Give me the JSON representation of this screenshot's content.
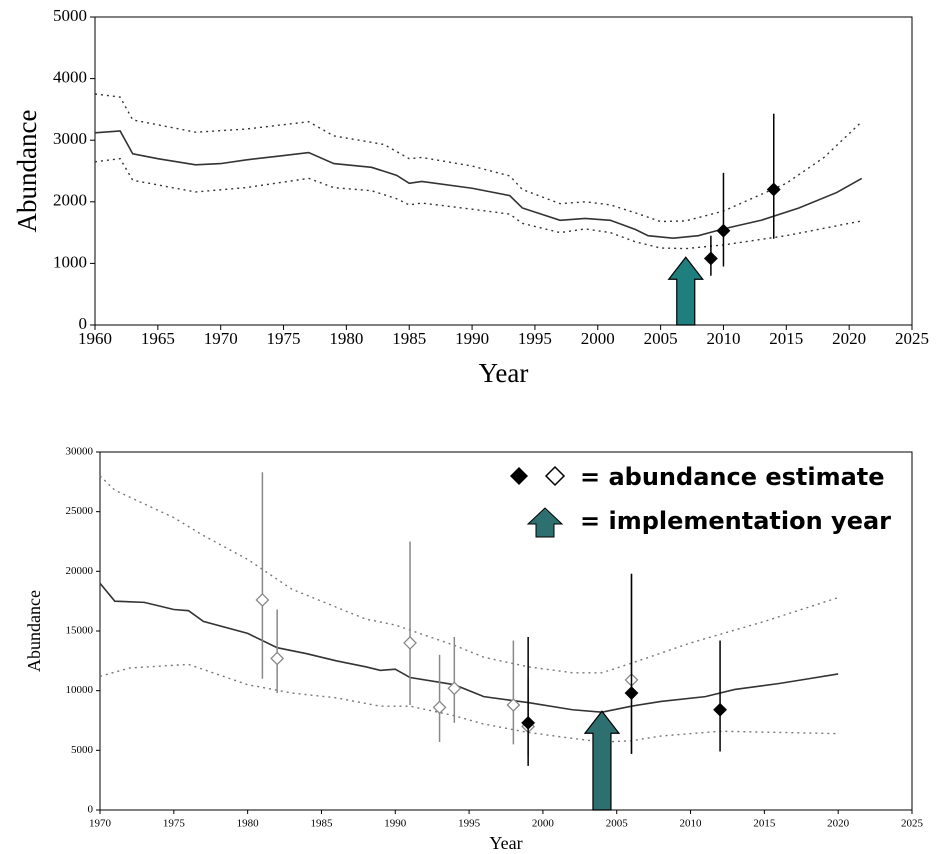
{
  "chart_data": [
    {
      "type": "line",
      "x_label": "Year",
      "y_label": "Abundance",
      "xlim": [
        1960,
        2025
      ],
      "xticks": [
        1960,
        1965,
        1970,
        1975,
        1980,
        1985,
        1990,
        1995,
        2000,
        2005,
        2010,
        2015,
        2020,
        2025
      ],
      "ylim": [
        0,
        5000
      ],
      "yticks": [
        0,
        1000,
        2000,
        3000,
        4000,
        5000
      ],
      "implementation_year": 2007,
      "arrow_color": "#1f7f7f",
      "series": [
        {
          "style": "solid",
          "color": "#333333",
          "x": [
            1960,
            1962,
            1963,
            1965,
            1968,
            1970,
            1972,
            1975,
            1977,
            1979,
            1982,
            1984,
            1985,
            1986,
            1990,
            1993,
            1994,
            1997,
            1999,
            2001,
            2003,
            2004,
            2006,
            2008,
            2010,
            2013,
            2016,
            2019,
            2021
          ],
          "values": [
            3120,
            3150,
            2780,
            2700,
            2600,
            2620,
            2680,
            2750,
            2800,
            2620,
            2560,
            2430,
            2300,
            2330,
            2220,
            2100,
            1900,
            1700,
            1730,
            1700,
            1550,
            1450,
            1410,
            1450,
            1560,
            1700,
            1900,
            2150,
            2380
          ]
        },
        {
          "style": "dotted",
          "color": "#333333",
          "x": [
            1960,
            1962,
            1963,
            1968,
            1972,
            1977,
            1979,
            1983,
            1985,
            1986,
            1990,
            1993,
            1994,
            1997,
            1999,
            2001,
            2003,
            2005,
            2007,
            2010,
            2015,
            2018,
            2021
          ],
          "values": [
            3750,
            3700,
            3330,
            3130,
            3180,
            3300,
            3070,
            2930,
            2700,
            2720,
            2580,
            2420,
            2200,
            1970,
            2000,
            1950,
            1820,
            1680,
            1690,
            1850,
            2300,
            2720,
            3300
          ]
        },
        {
          "style": "dotted",
          "color": "#333333",
          "x": [
            1960,
            1962,
            1963,
            1968,
            1972,
            1977,
            1979,
            1982,
            1984,
            1985,
            1986,
            1990,
            1993,
            1994,
            1997,
            1999,
            2001,
            2003,
            2005,
            2007,
            2010,
            2015,
            2021
          ],
          "values": [
            2650,
            2700,
            2350,
            2160,
            2230,
            2380,
            2230,
            2180,
            2050,
            1950,
            1980,
            1880,
            1800,
            1650,
            1500,
            1560,
            1500,
            1350,
            1250,
            1240,
            1300,
            1450,
            1690
          ]
        },
        {
          "style": "points",
          "marker": "filled",
          "color": "#000000",
          "x": [
            2009,
            2010,
            2014
          ],
          "values": [
            1080,
            1530,
            2200
          ],
          "lower": [
            800,
            950,
            1400
          ],
          "upper": [
            1450,
            2470,
            3430
          ]
        }
      ]
    },
    {
      "type": "line",
      "x_label": "Year",
      "y_label": "Abundance",
      "xlim": [
        1970,
        2025
      ],
      "xticks": [
        1970,
        1975,
        1980,
        1985,
        1990,
        1995,
        2000,
        2005,
        2010,
        2015,
        2020,
        2025
      ],
      "ylim": [
        0,
        30000
      ],
      "yticks": [
        0,
        5000,
        10000,
        15000,
        20000,
        25000,
        30000
      ],
      "implementation_year": 2004,
      "arrow_color": "#2e7070",
      "legend_entries": [
        "= abundance estimate",
        "= implementation year"
      ],
      "series": [
        {
          "style": "solid",
          "color": "#333333",
          "x": [
            1970,
            1971,
            1973,
            1975,
            1976,
            1977,
            1980,
            1982,
            1984,
            1986,
            1988,
            1989,
            1990,
            1991,
            1994,
            1996,
            1999,
            2002,
            2004,
            2006,
            2008,
            2011,
            2013,
            2016,
            2018,
            2020
          ],
          "values": [
            19000,
            17500,
            17400,
            16800,
            16700,
            15800,
            14800,
            13600,
            13100,
            12500,
            12000,
            11700,
            11800,
            11100,
            10500,
            9500,
            9000,
            8400,
            8200,
            8700,
            9100,
            9500,
            10100,
            10600,
            11000,
            11400
          ]
        },
        {
          "style": "dotted",
          "color": "#777777",
          "x": [
            1970,
            1971,
            1975,
            1977,
            1980,
            1983,
            1988,
            1990,
            1994,
            1996,
            1999,
            2002,
            2004,
            2006,
            2010,
            2015,
            2020
          ],
          "values": [
            28000,
            26800,
            24500,
            23000,
            21000,
            18500,
            16000,
            15500,
            13800,
            12800,
            12000,
            11500,
            11500,
            12300,
            14000,
            15800,
            17800
          ]
        },
        {
          "style": "dotted",
          "color": "#777777",
          "x": [
            1970,
            1972,
            1976,
            1980,
            1983,
            1986,
            1989,
            1991,
            1994,
            1996,
            1999,
            2002,
            2004,
            2006,
            2008,
            2012,
            2016,
            2020
          ],
          "values": [
            11200,
            11900,
            12200,
            10500,
            9800,
            9400,
            8700,
            8700,
            7900,
            7200,
            6500,
            6000,
            5700,
            5800,
            6200,
            6600,
            6500,
            6400
          ]
        },
        {
          "style": "points",
          "marker": "open",
          "color": "#888888",
          "x": [
            1981,
            1982,
            1991,
            1993,
            1994,
            1998,
            1999,
            2006
          ],
          "values": [
            17600,
            12700,
            14000,
            8600,
            10200,
            8800,
            7000,
            10900
          ],
          "lower": [
            11000,
            9800,
            8800,
            5700,
            7300,
            5500,
            4500,
            4700
          ],
          "upper": [
            28300,
            16800,
            22500,
            13000,
            14500,
            14200,
            11000,
            19800
          ]
        },
        {
          "style": "points",
          "marker": "filled",
          "color": "#000000",
          "x": [
            1999,
            2006,
            2012
          ],
          "values": [
            7300,
            9800,
            8400
          ],
          "lower": [
            3700,
            4700,
            4900
          ],
          "upper": [
            14500,
            19800,
            14200
          ]
        }
      ]
    }
  ]
}
